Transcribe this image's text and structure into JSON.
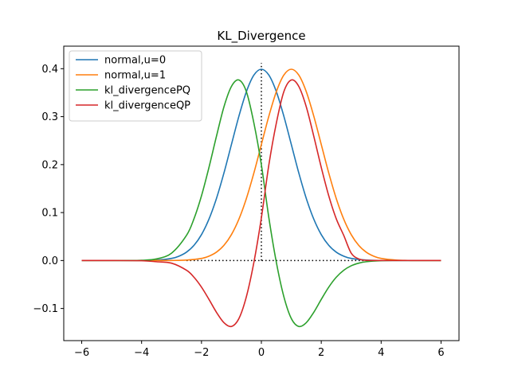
{
  "chart_data": {
    "type": "line",
    "title": "KL_Divergence",
    "xlabel": "",
    "ylabel": "",
    "xlim": [
      -6.6,
      6.6
    ],
    "ylim": [
      -0.167,
      0.447
    ],
    "xticks": [
      -6,
      -4,
      -2,
      0,
      2,
      4,
      6
    ],
    "xtick_labels": [
      "−6",
      "−4",
      "−2",
      "0",
      "2",
      "4",
      "6"
    ],
    "yticks": [
      -0.1,
      0.0,
      0.1,
      0.2,
      0.3,
      0.4
    ],
    "ytick_labels": [
      "−0.1",
      "0.0",
      "0.1",
      "0.2",
      "0.3",
      "0.4"
    ],
    "grid": false,
    "legend_position": "top-left",
    "x_range": [
      -6,
      6
    ],
    "series": [
      {
        "name": "normal,u=0",
        "color": "#1f77b4",
        "x": [
          -6,
          -5.5,
          -5,
          -4.5,
          -4,
          -3.5,
          -3,
          -2.75,
          -2.5,
          -2.25,
          -2,
          -1.75,
          -1.5,
          -1.25,
          -1,
          -0.75,
          -0.5,
          -0.25,
          0,
          0.25,
          0.5,
          0.75,
          1,
          1.25,
          1.5,
          1.75,
          2,
          2.25,
          2.5,
          2.75,
          3,
          3.5,
          4,
          4.5,
          5,
          5.5,
          6
        ],
        "y": [
          0.0,
          0.0,
          0.0,
          0.0,
          0.0001,
          0.0009,
          0.0044,
          0.0091,
          0.0175,
          0.0317,
          0.054,
          0.0863,
          0.1295,
          0.1826,
          0.242,
          0.3011,
          0.3521,
          0.3867,
          0.3989,
          0.3867,
          0.3521,
          0.3011,
          0.242,
          0.1826,
          0.1295,
          0.0863,
          0.054,
          0.0317,
          0.0175,
          0.0091,
          0.0044,
          0.0009,
          0.0001,
          0.0,
          0.0,
          0.0,
          0.0
        ]
      },
      {
        "name": "normal,u=1",
        "color": "#ff7f0e",
        "x": [
          -6,
          -5,
          -4,
          -3.5,
          -3,
          -2.5,
          -2,
          -1.75,
          -1.5,
          -1.25,
          -1,
          -0.75,
          -0.5,
          -0.25,
          0,
          0.25,
          0.5,
          0.75,
          1,
          1.25,
          1.5,
          1.75,
          2,
          2.25,
          2.5,
          2.75,
          3,
          3.25,
          3.5,
          3.75,
          4,
          4.5,
          5,
          5.5,
          6
        ],
        "y": [
          0.0,
          0.0,
          0.0,
          0.0,
          0.0001,
          0.0009,
          0.0044,
          0.0091,
          0.0175,
          0.0317,
          0.054,
          0.0863,
          0.1295,
          0.1826,
          0.242,
          0.3011,
          0.3521,
          0.3867,
          0.3989,
          0.3867,
          0.3521,
          0.3011,
          0.242,
          0.1826,
          0.1295,
          0.0863,
          0.054,
          0.0317,
          0.0175,
          0.0091,
          0.0044,
          0.0009,
          0.0001,
          0.0,
          0.0
        ]
      },
      {
        "name": "kl_divergencePQ",
        "color": "#2ca02c",
        "x": [
          -6,
          -5,
          -4.5,
          -4,
          -3.5,
          -3,
          -2.5,
          -2.25,
          -2,
          -1.75,
          -1.5,
          -1.25,
          -1,
          -0.75,
          -0.5,
          -0.25,
          0,
          0.25,
          0.5,
          0.75,
          1,
          1.25,
          1.5,
          1.75,
          2,
          2.25,
          2.5,
          2.75,
          3,
          3.25,
          3.5,
          4,
          4.5,
          5,
          6
        ],
        "y": [
          0.0,
          0.0,
          0.0,
          0.0005,
          0.0034,
          0.0154,
          0.0525,
          0.0872,
          0.135,
          0.1942,
          0.2591,
          0.3205,
          0.363,
          0.3764,
          0.352,
          0.2867,
          0.1995,
          0.0891,
          -0.0038,
          -0.0752,
          -0.121,
          -0.1375,
          -0.1295,
          -0.1079,
          -0.081,
          -0.0555,
          -0.0349,
          -0.0203,
          -0.0109,
          -0.0055,
          -0.0025,
          -0.0004,
          0.0,
          0.0,
          0.0
        ]
      },
      {
        "name": "kl_divergenceQP",
        "color": "#d62728",
        "x": [
          -6,
          -5,
          -4,
          -3.5,
          -3,
          -2.5,
          -2.25,
          -2,
          -1.75,
          -1.5,
          -1.25,
          -1,
          -0.75,
          -0.5,
          -0.25,
          0,
          0.25,
          0.5,
          0.75,
          1,
          1.25,
          1.5,
          1.75,
          2,
          2.25,
          2.5,
          2.75,
          3,
          3.25,
          3.5,
          4,
          4.5,
          5,
          5.5,
          6
        ],
        "y": [
          0.0,
          0.0,
          -0.0004,
          -0.0025,
          -0.0055,
          -0.0203,
          -0.0349,
          -0.0555,
          -0.081,
          -0.1079,
          -0.1295,
          -0.1375,
          -0.121,
          -0.0752,
          -0.0038,
          0.0891,
          0.1995,
          0.2867,
          0.352,
          0.3764,
          0.363,
          0.3205,
          0.2591,
          0.1942,
          0.135,
          0.0872,
          0.0525,
          0.0154,
          0.0034,
          0.0005,
          0.0,
          0.0,
          0.0,
          0.0,
          0.0
        ]
      }
    ],
    "reference_lines": [
      {
        "kind": "vertical",
        "x": 0,
        "y_from": 0,
        "y_to": 0.412,
        "style": "dotted",
        "color": "#000000"
      },
      {
        "kind": "horizontal",
        "y": 0,
        "x_from": -2.5,
        "x_to": 3.5,
        "style": "dotted",
        "color": "#000000"
      }
    ]
  }
}
